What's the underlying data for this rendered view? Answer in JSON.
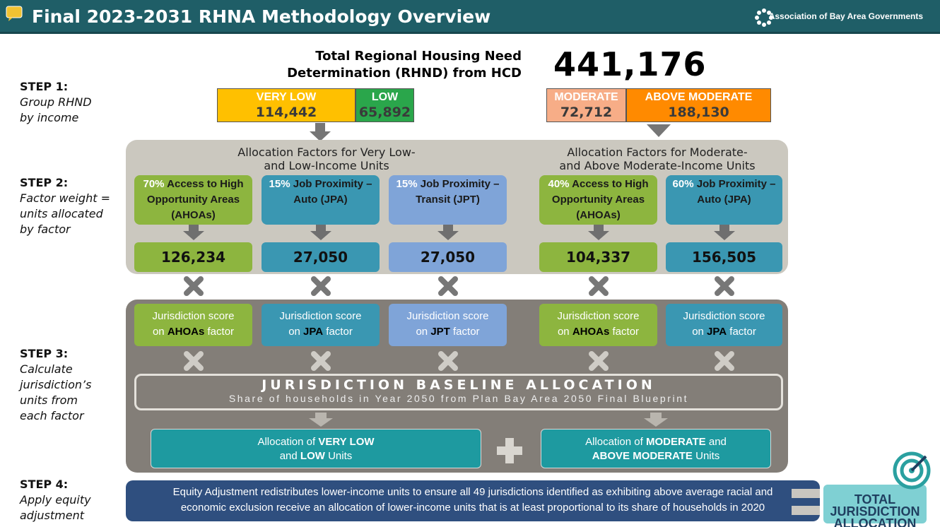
{
  "header": {
    "title": "Final 2023-2031 RHNA Methodology Overview",
    "org": "Association of Bay Area Governments"
  },
  "total": {
    "label": [
      "Total Regional Housing Need",
      "Determination (RHND) from HCD"
    ],
    "value": "441,176"
  },
  "steps": [
    {
      "label": "STEP 1:",
      "desc": [
        "Group RHND",
        "by income"
      ]
    },
    {
      "label": "STEP 2:",
      "desc": [
        "Factor weight =",
        "units allocated",
        "by factor"
      ]
    },
    {
      "label": "STEP 3:",
      "desc": [
        "Calculate",
        "jurisdiction’s",
        "units from",
        "each factor"
      ]
    },
    {
      "label": "STEP 4:",
      "desc": [
        "Apply equity",
        "adjustment"
      ]
    }
  ],
  "income_groups": [
    {
      "name": "VERY LOW",
      "value": "114,442"
    },
    {
      "name": "LOW",
      "value": "65,892"
    },
    {
      "name": "MODERATE",
      "value": "72,712"
    },
    {
      "name": "ABOVE MODERATE",
      "value": "188,130"
    }
  ],
  "factor_groups": [
    [
      "Allocation Factors for Very Low-",
      "and Low-Income Units"
    ],
    [
      "Allocation Factors for Moderate-",
      "and Above Moderate-Income Units"
    ]
  ],
  "factors": [
    {
      "weight": "70%",
      "name": "Access to High Opportunity Areas (AHOAs)",
      "units": "126,234",
      "score": [
        "Jurisdiction score",
        "on",
        "AHOAs",
        "factor"
      ]
    },
    {
      "weight": "15%",
      "name": "Job Proximity – Auto (JPA)",
      "units": "27,050",
      "score": [
        "Jurisdiction score",
        "on",
        "JPA",
        "factor"
      ]
    },
    {
      "weight": "15%",
      "name": "Job Proximity – Transit (JPT)",
      "units": "27,050",
      "score": [
        "Jurisdiction score",
        "on",
        "JPT",
        "factor"
      ]
    },
    {
      "weight": "40%",
      "name": "Access to High Opportunity Areas (AHOAs)",
      "units": "104,337",
      "score": [
        "Jurisdiction score",
        "on",
        "AHOAs",
        "factor"
      ]
    },
    {
      "weight": "60%",
      "name": "Job Proximity – Auto (JPA)",
      "units": "156,505",
      "score": [
        "Jurisdiction score",
        "on",
        "JPA",
        "factor"
      ]
    }
  ],
  "baseline": {
    "title": "JURISDICTION BASELINE ALLOCATION",
    "subtitle": "Share of households in Year 2050 from Plan Bay Area 2050 Final Blueprint"
  },
  "allocations": [
    [
      "Allocation of",
      "VERY LOW",
      "and",
      "LOW",
      "Units"
    ],
    [
      "Allocation of",
      "MODERATE",
      "and",
      "ABOVE MODERATE",
      "Units"
    ]
  ],
  "equity": [
    "Equity Adjustment redistributes lower-income units to ensure all 49 jurisdictions identified as exhibiting above average racial and",
    "economic exclusion receive an allocation of lower-income units that is at least proportional to its share of households in 2020"
  ],
  "result": [
    "TOTAL",
    "JURISDICTION",
    "ALLOCATION"
  ]
}
